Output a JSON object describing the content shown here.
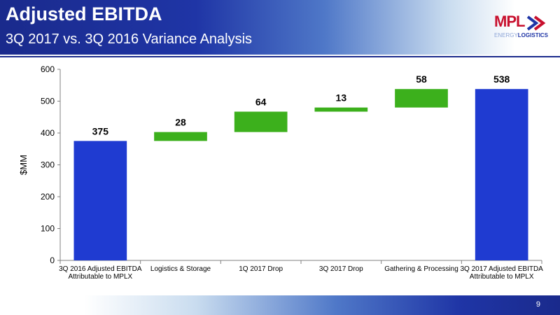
{
  "header": {
    "title": "Adjusted EBITDA",
    "subtitle": "3Q 2017 vs. 3Q 2016 Variance Analysis"
  },
  "logo": {
    "brand": "MPL",
    "tagline_light": "ENERGY",
    "tagline_bold": "LOGISTICS",
    "brand_color": "#c8102e",
    "accent_color": "#1f35a6"
  },
  "footer": {
    "page_number": "9"
  },
  "chart_data": {
    "type": "bar",
    "subtype": "waterfall",
    "title": "",
    "ylabel": "$MM",
    "xlabel": "",
    "ylim": [
      0,
      600
    ],
    "yticks": [
      0,
      100,
      200,
      300,
      400,
      500,
      600
    ],
    "grid": false,
    "categories": [
      "3Q 2016 Adjusted EBITDA Attributable to MPLX",
      "Logistics & Storage",
      "1Q 2017 Drop",
      "3Q 2017 Drop",
      "Gathering & Processing",
      "3Q 2017 Adjusted EBITDA Attributable to MPLX"
    ],
    "values": [
      375,
      28,
      64,
      13,
      58,
      538
    ],
    "bar_kinds": [
      "total",
      "increase",
      "increase",
      "increase",
      "increase",
      "total"
    ],
    "data_labels": [
      "375",
      "28",
      "64",
      "13",
      "58",
      "538"
    ],
    "colors": {
      "total": "#1f3bd1",
      "increase": "#3cb01c"
    }
  }
}
